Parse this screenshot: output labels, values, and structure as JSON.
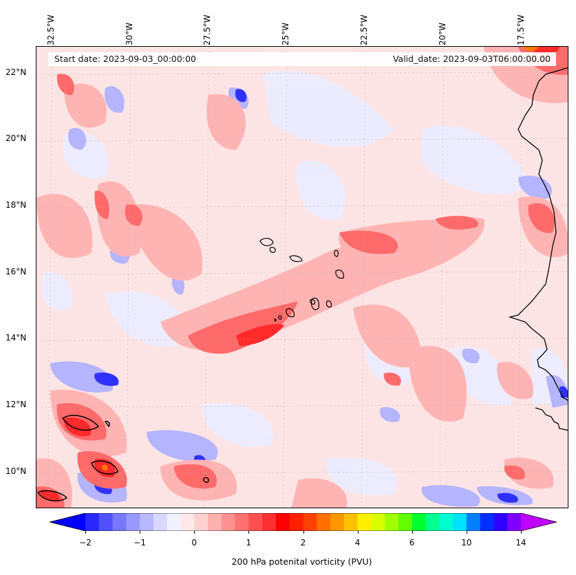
{
  "map": {
    "region": "Eastern tropical Atlantic / Cape Verde",
    "projection": "lon-lat",
    "lon_range": [
      -33.0,
      -16.0
    ],
    "lat_range": [
      8.9,
      22.8
    ],
    "lon_ticks": [
      "32.5°W",
      "30°W",
      "27.5°W",
      "25°W",
      "22.5°W",
      "20°W",
      "17.5°W"
    ],
    "lon_tick_values": [
      -32.5,
      -30,
      -27.5,
      -25,
      -22.5,
      -20,
      -17.5
    ],
    "lat_ticks": [
      "22°N",
      "20°N",
      "18°N",
      "16°N",
      "14°N",
      "12°N",
      "10°N"
    ],
    "lat_tick_values": [
      22,
      20,
      18,
      16,
      14,
      12,
      10
    ],
    "gridlines": true,
    "start_date": "Start date: 2023-09-03_00:00:00",
    "valid_date": "Valid_date: 2023-09-03T06:00:00.00",
    "colors": {
      "coastline": "#000000",
      "background_field": "#fde8e8"
    }
  },
  "colorbar": {
    "label": "200 hPa potenital vorticity (PVU)",
    "tick_labels": [
      "−2",
      "−1",
      "0",
      "1",
      "2",
      "4",
      "6",
      "10",
      "14"
    ],
    "extend": "both",
    "colors": [
      "#0000ff",
      "#2828ff",
      "#5050ff",
      "#7878ff",
      "#9898ff",
      "#b8b8ff",
      "#d8d8ff",
      "#f0f0ff",
      "#ffe8e8",
      "#ffd0d0",
      "#ffb0b0",
      "#ff9090",
      "#ff7070",
      "#ff5050",
      "#ff3030",
      "#ff0000",
      "#ff2000",
      "#ff4000",
      "#ff7000",
      "#ff9800",
      "#ffc000",
      "#fff000",
      "#d8ff00",
      "#a0ff00",
      "#60ff00",
      "#00ff30",
      "#00ff90",
      "#00ffd0",
      "#00e0ff",
      "#0080ff",
      "#0030ff",
      "#3000ff",
      "#8000ff",
      "#c000ff"
    ]
  },
  "colors": {
    "neg_strong": "#0000ff",
    "neg_mid": "#8888ff",
    "neg_weak": "#dcdcff",
    "pos_weak": "#ffd6d6",
    "pos_mid": "#ff9a9a",
    "pos_strong": "#ff3c3c",
    "pos_max": "#ff7000"
  }
}
